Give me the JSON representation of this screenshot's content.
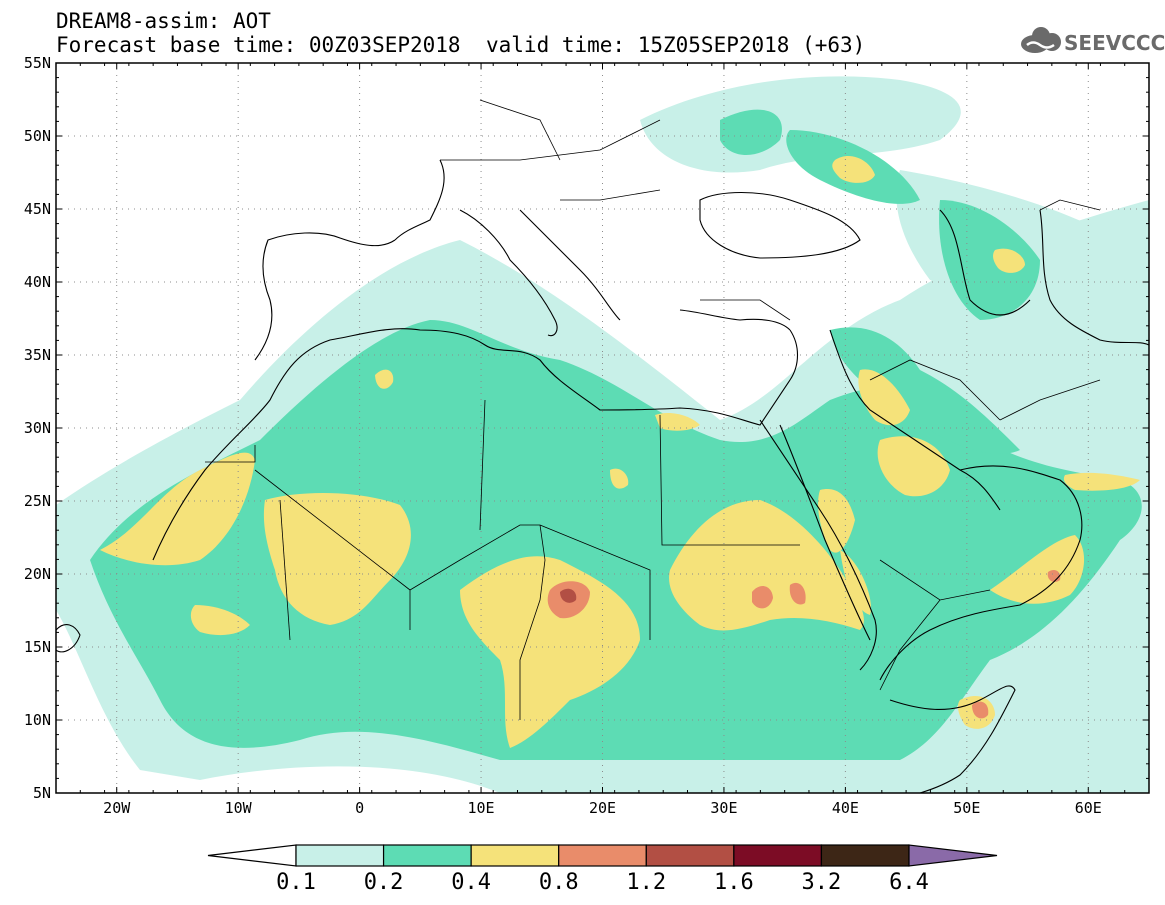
{
  "header": {
    "line1": "DREAM8-assim: AOT",
    "line2_left": "Forecast base time: 00Z03SEP2018",
    "line2_right": "valid time: 15Z05SEP2018 (+63)",
    "logo_text": "SEEVCCC",
    "logo_icon": "cloud-icon"
  },
  "map": {
    "projection": "lat-lon",
    "lon_range": [
      -25,
      65
    ],
    "lat_range": [
      5,
      55
    ],
    "lat_labels": [
      "55N",
      "50N",
      "45N",
      "40N",
      "35N",
      "30N",
      "25N",
      "20N",
      "15N",
      "10N",
      "5N"
    ],
    "lon_labels": [
      "20W",
      "10W",
      "0",
      "10E",
      "20E",
      "30E",
      "40E",
      "50E",
      "60E"
    ],
    "grid": "dotted",
    "features": [
      "coastlines",
      "country borders"
    ]
  },
  "colorbar": {
    "labels": [
      "0.1",
      "0.2",
      "0.4",
      "0.8",
      "1.2",
      "1.6",
      "3.2",
      "6.4"
    ],
    "colors": [
      "#ffffff",
      "#c8f0e8",
      "#5ddcb4",
      "#f5e27a",
      "#e98c6a",
      "#b24f44",
      "#7c0c25",
      "#3d2616",
      "#8a6aa8"
    ]
  }
}
